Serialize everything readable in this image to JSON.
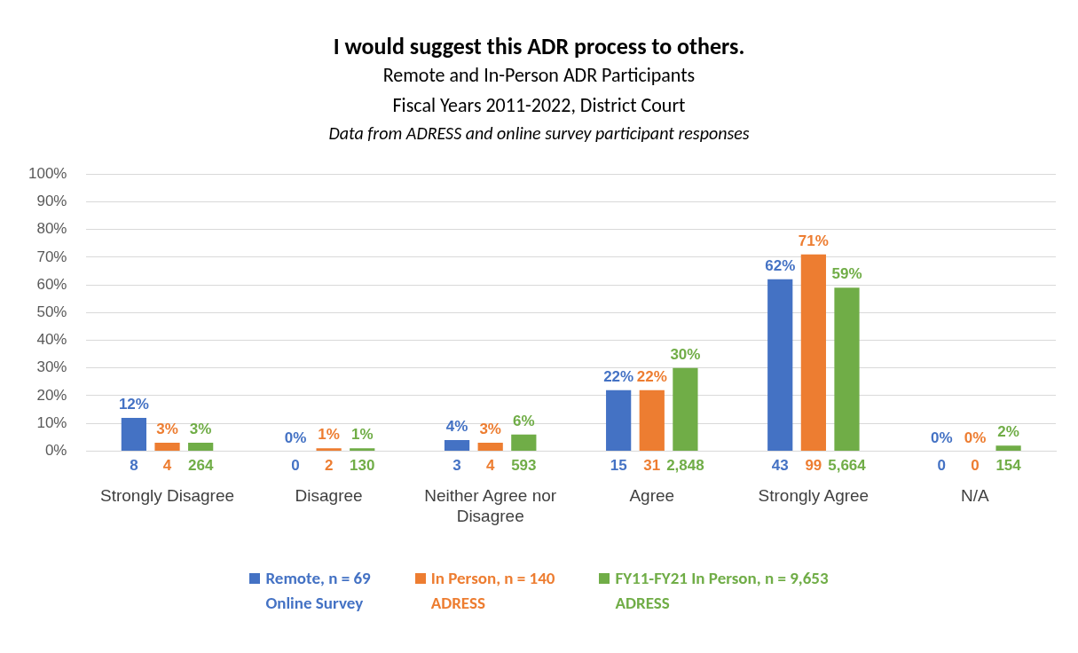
{
  "chart_data": {
    "type": "bar",
    "title": "I would suggest this ADR process to others.",
    "subtitle": "Remote and In-Person ADR Participants\nFiscal Years 2011-2022, District Court",
    "categories": [
      "Strongly Disagree",
      "Disagree",
      "Neither Agree nor Disagree",
      "Agree",
      "Strongly Agree",
      "N/A"
    ],
    "series": [
      {
        "name": "Remote, n = 69\nOnline Survey",
        "color": "#4472c4",
        "values": [
          12,
          0,
          4,
          22,
          62,
          0
        ]
      },
      {
        "name": "In Person, n = 140\nADRESS",
        "color": "#ed7d31",
        "values": [
          3,
          1,
          3,
          22,
          71,
          0
        ]
      },
      {
        "name": "FY11-FY21 In Person, n = 9,653\nADRESS",
        "color": "#70ad47",
        "values": [
          3,
          1,
          6,
          30,
          59,
          2
        ]
      }
    ],
    "value_labels": [
      [
        "12%",
        "0%",
        "4%",
        "22%",
        "62%",
        "0%"
      ],
      [
        "3%",
        "1%",
        "3%",
        "22%",
        "71%",
        "0%"
      ],
      [
        "3%",
        "1%",
        "6%",
        "30%",
        "59%",
        "2%"
      ]
    ],
    "annotations": [
      "Data from ADRESS and online survey participant responses",
      {
        "text": "8",
        "x": "Strongly Disagree",
        "y": 0
      },
      {
        "text": "4",
        "x": "Strongly Disagree",
        "y": 0
      },
      {
        "text": "264",
        "x": "Strongly Disagree",
        "y": 0
      },
      {
        "text": "0",
        "x": "Disagree",
        "y": 0
      },
      {
        "text": "2",
        "x": "Disagree",
        "y": 0
      },
      {
        "text": "130",
        "x": "Disagree",
        "y": 0
      },
      {
        "text": "3",
        "x": "Neither Agree nor Disagree",
        "y": 0
      },
      {
        "text": "4",
        "x": "Neither Agree nor Disagree",
        "y": 0
      },
      {
        "text": "593",
        "x": "Neither Agree nor Disagree",
        "y": 0
      },
      {
        "text": "15",
        "x": "Agree",
        "y": 0
      },
      {
        "text": "31",
        "x": "Agree",
        "y": 0
      },
      {
        "text": "2,848",
        "x": "Agree",
        "y": 0
      },
      {
        "text": "43",
        "x": "Strongly Agree",
        "y": 0
      },
      {
        "text": "99",
        "x": "Strongly Agree",
        "y": 0
      },
      {
        "text": "5,664",
        "x": "Strongly Agree",
        "y": 0
      },
      {
        "text": "0",
        "x": "N/A",
        "y": 0
      },
      {
        "text": "0",
        "x": "N/A",
        "y": 0
      },
      {
        "text": "154",
        "x": "N/A",
        "y": 0
      }
    ],
    "ylim": [
      0,
      100
    ],
    "yticks": [
      {
        "value": 0,
        "label": "0%"
      },
      {
        "value": 10,
        "label": "10%"
      },
      {
        "value": 20,
        "label": "20%"
      },
      {
        "value": 30,
        "label": "30%"
      },
      {
        "value": 40,
        "label": "40%"
      },
      {
        "value": 50,
        "label": "50%"
      },
      {
        "value": 60,
        "label": "60%"
      },
      {
        "value": 70,
        "label": "70%"
      },
      {
        "value": 80,
        "label": "80%"
      },
      {
        "value": 90,
        "label": "90%"
      },
      {
        "value": 100,
        "label": "100%"
      }
    ],
    "grid": "y",
    "legend": "bottom"
  }
}
